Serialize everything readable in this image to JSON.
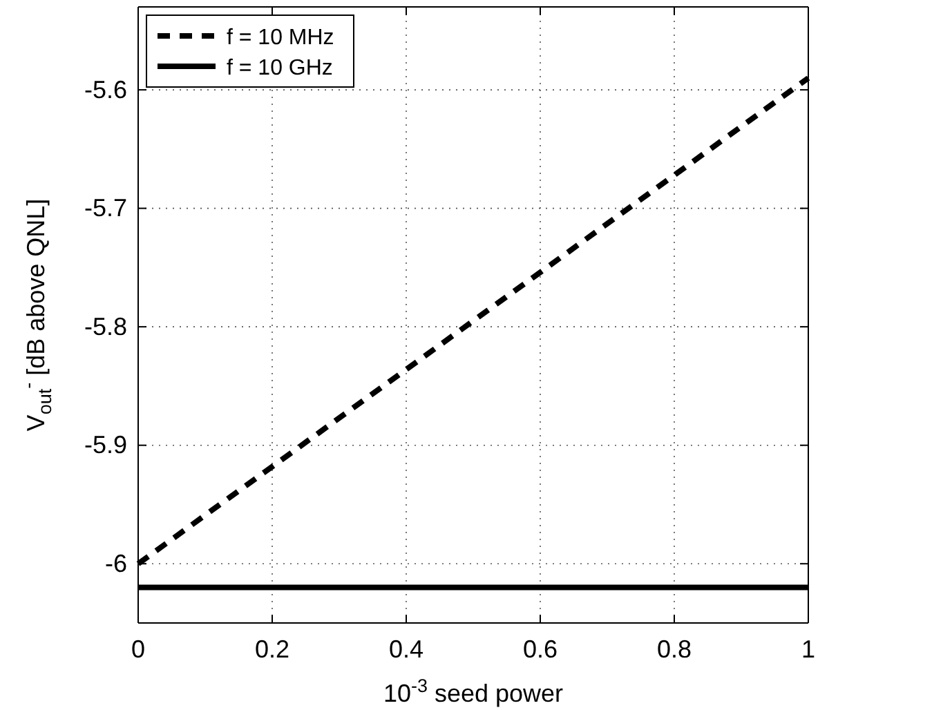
{
  "chart_data": {
    "type": "line",
    "xlabel": "10$^{-3}$ seed power",
    "ylabel": "V$_{out}$$^{-}$   [dB above QNL]",
    "x": [
      0,
      1
    ],
    "xlim": [
      0,
      1
    ],
    "xticks": [
      0,
      0.2,
      0.4,
      0.6,
      0.8,
      1
    ],
    "ylim": [
      -6.05,
      -5.53
    ],
    "yticks": [
      -6,
      -5.9,
      -5.8,
      -5.7,
      -5.6
    ],
    "series": [
      {
        "name": "f = 10 MHz",
        "color": "#000000",
        "values": [
          -6.0,
          -5.59
        ],
        "line_style": "dashed"
      },
      {
        "name": "f = 10 GHz",
        "color": "#000000",
        "values": [
          -6.02,
          -6.02
        ],
        "line_style": "solid"
      }
    ],
    "grid": true,
    "legend": "top left",
    "marker": "none"
  }
}
